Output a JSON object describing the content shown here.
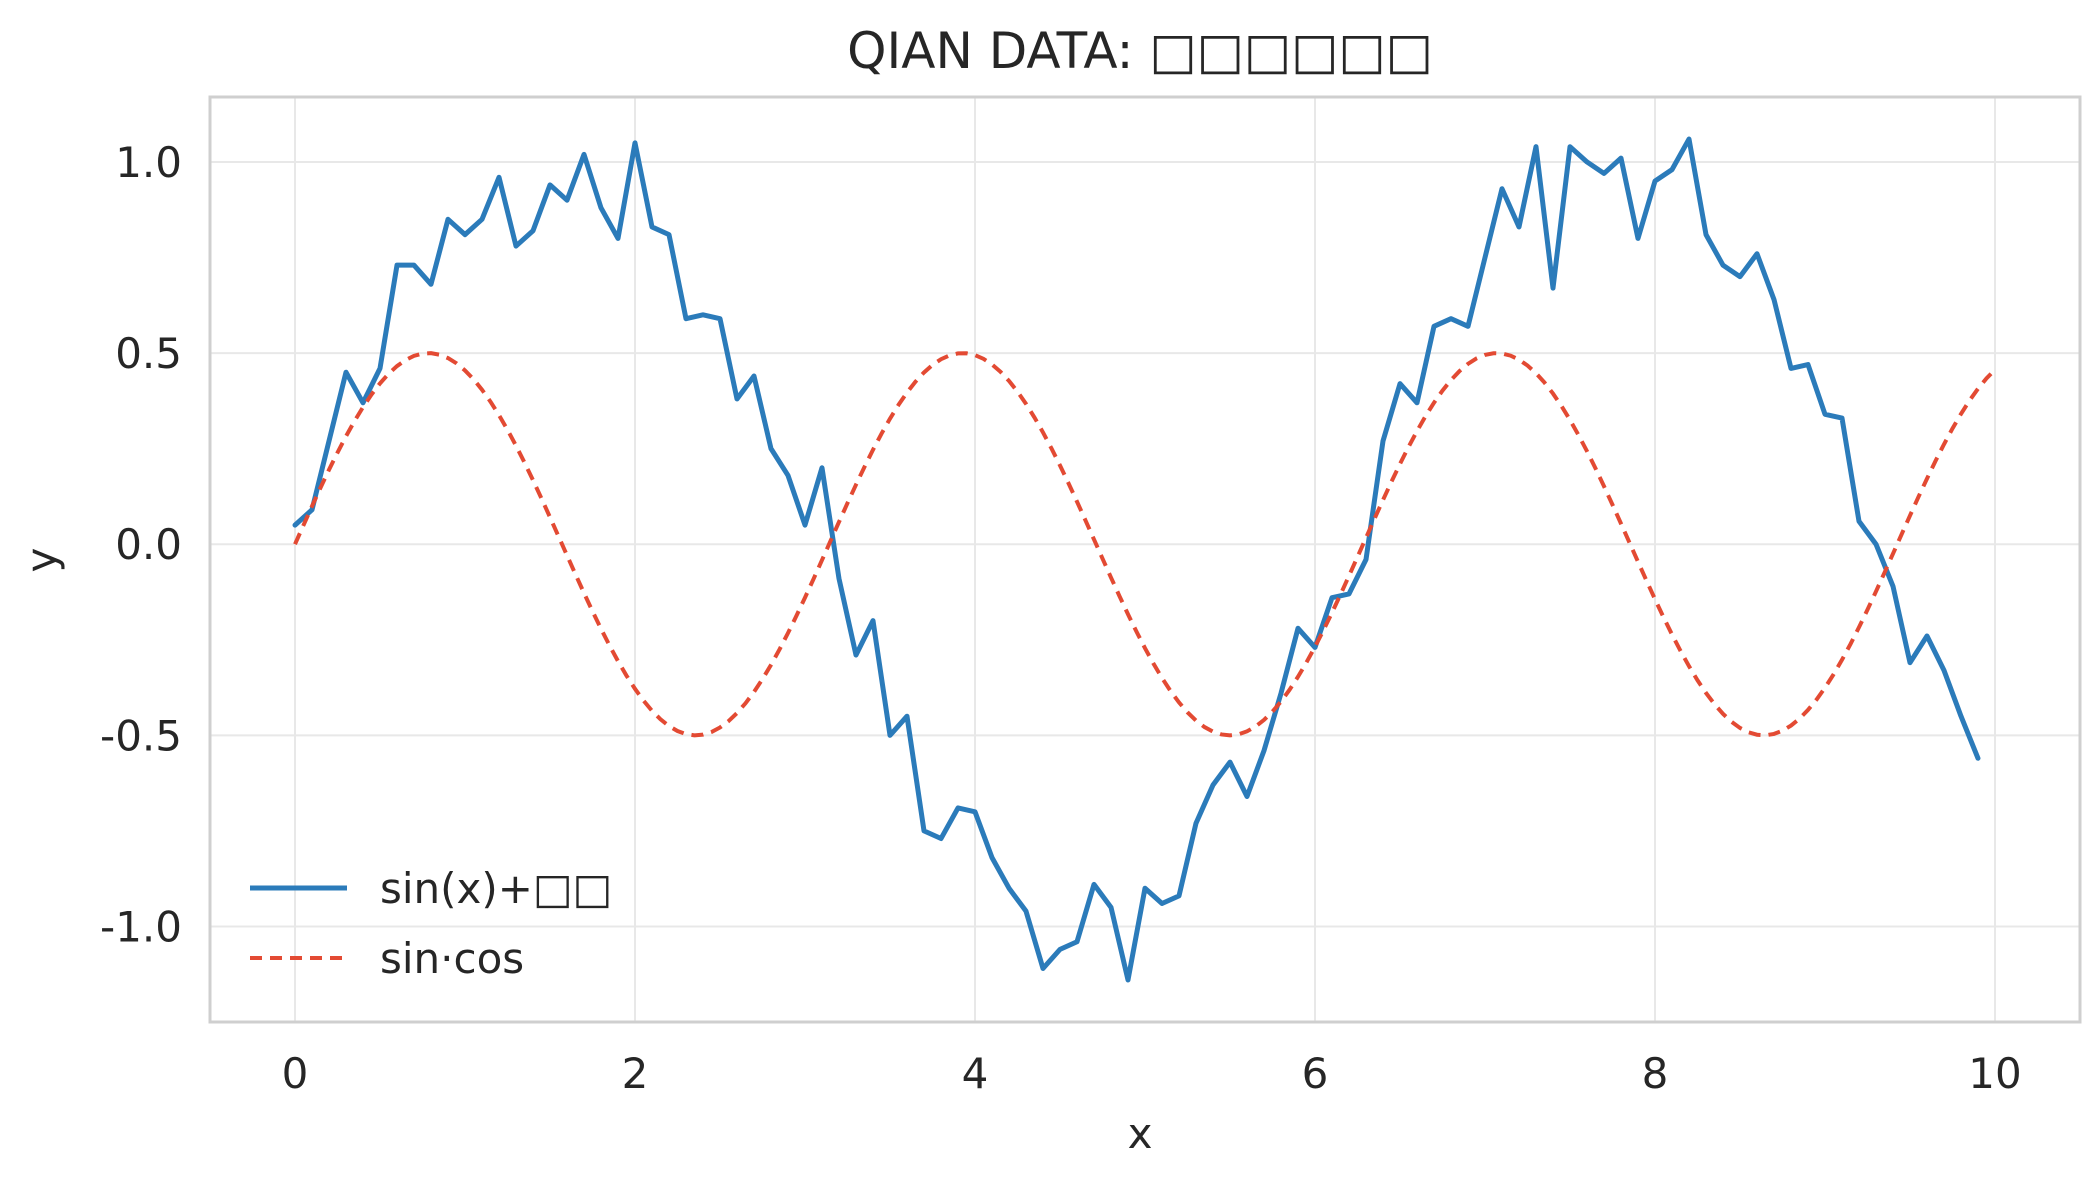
{
  "chart_data": {
    "type": "line",
    "title": "QIAN DATA: □□□□□□",
    "xlabel": "x",
    "ylabel": "y",
    "xlim": [
      -0.5,
      10.5
    ],
    "ylim": [
      -1.25,
      1.17
    ],
    "xticks": [
      0,
      2,
      4,
      6,
      8,
      10
    ],
    "xtick_labels": [
      "0",
      "2",
      "4",
      "6",
      "8",
      "10"
    ],
    "yticks": [
      1.0,
      0.5,
      0.0,
      -0.5,
      -1.0
    ],
    "ytick_labels": [
      "1.0",
      "0.5",
      "0.0",
      "-0.5",
      "-1.0"
    ],
    "grid": true,
    "legend_position": "bottom-left",
    "series": [
      {
        "name": "sin(x)+□□",
        "color": "#2b7bba",
        "style": "solid",
        "points": [
          [
            0.0,
            0.05
          ],
          [
            0.1,
            0.09
          ],
          [
            0.2,
            0.27
          ],
          [
            0.3,
            0.45
          ],
          [
            0.4,
            0.37
          ],
          [
            0.5,
            0.46
          ],
          [
            0.6,
            0.73
          ],
          [
            0.7,
            0.73
          ],
          [
            0.8,
            0.68
          ],
          [
            0.9,
            0.85
          ],
          [
            1.0,
            0.81
          ],
          [
            1.1,
            0.85
          ],
          [
            1.2,
            0.96
          ],
          [
            1.3,
            0.78
          ],
          [
            1.4,
            0.82
          ],
          [
            1.5,
            0.94
          ],
          [
            1.6,
            0.9
          ],
          [
            1.7,
            1.02
          ],
          [
            1.8,
            0.88
          ],
          [
            1.9,
            0.8
          ],
          [
            2.0,
            1.05
          ],
          [
            2.1,
            0.83
          ],
          [
            2.2,
            0.81
          ],
          [
            2.3,
            0.59
          ],
          [
            2.4,
            0.6
          ],
          [
            2.5,
            0.59
          ],
          [
            2.6,
            0.38
          ],
          [
            2.7,
            0.44
          ],
          [
            2.8,
            0.25
          ],
          [
            2.9,
            0.18
          ],
          [
            3.0,
            0.05
          ],
          [
            3.1,
            0.2
          ],
          [
            3.2,
            -0.09
          ],
          [
            3.3,
            -0.29
          ],
          [
            3.4,
            -0.2
          ],
          [
            3.5,
            -0.5
          ],
          [
            3.6,
            -0.45
          ],
          [
            3.7,
            -0.75
          ],
          [
            3.8,
            -0.77
          ],
          [
            3.9,
            -0.69
          ],
          [
            4.0,
            -0.7
          ],
          [
            4.1,
            -0.82
          ],
          [
            4.2,
            -0.9
          ],
          [
            4.3,
            -0.96
          ],
          [
            4.4,
            -1.11
          ],
          [
            4.5,
            -1.06
          ],
          [
            4.6,
            -1.04
          ],
          [
            4.7,
            -0.89
          ],
          [
            4.8,
            -0.95
          ],
          [
            4.9,
            -1.14
          ],
          [
            5.0,
            -0.9
          ],
          [
            5.1,
            -0.94
          ],
          [
            5.2,
            -0.92
          ],
          [
            5.3,
            -0.73
          ],
          [
            5.4,
            -0.63
          ],
          [
            5.5,
            -0.57
          ],
          [
            5.6,
            -0.66
          ],
          [
            5.7,
            -0.54
          ],
          [
            5.8,
            -0.39
          ],
          [
            5.9,
            -0.22
          ],
          [
            6.0,
            -0.27
          ],
          [
            6.1,
            -0.14
          ],
          [
            6.2,
            -0.13
          ],
          [
            6.3,
            -0.04
          ],
          [
            6.4,
            0.27
          ],
          [
            6.5,
            0.42
          ],
          [
            6.6,
            0.37
          ],
          [
            6.7,
            0.57
          ],
          [
            6.8,
            0.59
          ],
          [
            6.9,
            0.57
          ],
          [
            7.0,
            0.75
          ],
          [
            7.1,
            0.93
          ],
          [
            7.2,
            0.83
          ],
          [
            7.3,
            1.04
          ],
          [
            7.4,
            0.67
          ],
          [
            7.5,
            1.04
          ],
          [
            7.6,
            1.0
          ],
          [
            7.7,
            0.97
          ],
          [
            7.8,
            1.01
          ],
          [
            7.9,
            0.8
          ],
          [
            8.0,
            0.95
          ],
          [
            8.1,
            0.98
          ],
          [
            8.2,
            1.06
          ],
          [
            8.3,
            0.81
          ],
          [
            8.4,
            0.73
          ],
          [
            8.5,
            0.7
          ],
          [
            8.6,
            0.76
          ],
          [
            8.7,
            0.64
          ],
          [
            8.8,
            0.46
          ],
          [
            8.9,
            0.47
          ],
          [
            9.0,
            0.34
          ],
          [
            9.1,
            0.33
          ],
          [
            9.2,
            0.06
          ],
          [
            9.3,
            0.0
          ],
          [
            9.4,
            -0.11
          ],
          [
            9.5,
            -0.31
          ],
          [
            9.6,
            -0.24
          ],
          [
            9.7,
            -0.33
          ],
          [
            9.8,
            -0.45
          ],
          [
            9.9,
            -0.56
          ]
        ]
      },
      {
        "name": "sin·cos",
        "color": "#e34a33",
        "style": "dashed",
        "formula": "0.5*sin(2x)",
        "x_start": 0,
        "x_end": 10,
        "samples": 200
      }
    ]
  }
}
